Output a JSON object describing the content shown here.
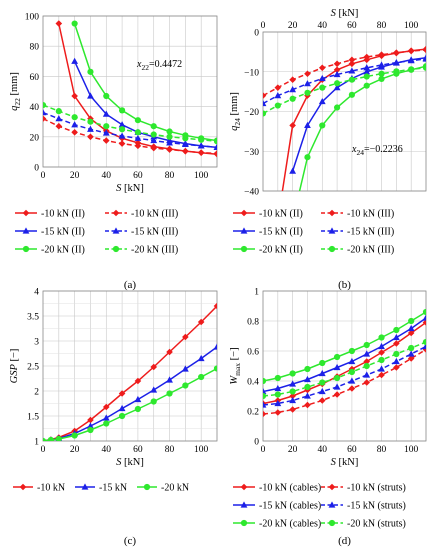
{
  "panels": {
    "a": {
      "label": "(a)",
      "annotation": "x22=0.4472"
    },
    "b": {
      "label": "(b)",
      "annotation": "x24=−0.2236"
    },
    "c": {
      "label": "(c)"
    },
    "d": {
      "label": "(d)"
    }
  },
  "colors": {
    "red": "#ee1c1c",
    "blue": "#1c20e8",
    "green": "#2ee82e"
  },
  "chart_data": [
    {
      "id": "a",
      "type": "line",
      "xlabel": "S [kN]",
      "ylabel": "q22 [mm]",
      "xlim": [
        0,
        110
      ],
      "ylim": [
        0,
        100
      ],
      "xticks": [
        0,
        20,
        40,
        60,
        80,
        100
      ],
      "yticks": [
        0,
        20,
        40,
        60,
        80,
        100
      ],
      "grid": true,
      "legend": "below",
      "series": [
        {
          "name": "-10 kN (II)",
          "color": "red",
          "dash": false,
          "marker": "diamond",
          "x": [
            10,
            20,
            30,
            40,
            50,
            60,
            70,
            80,
            90,
            100,
            110
          ],
          "y": [
            95,
            47,
            32,
            24,
            19,
            16,
            13.5,
            12,
            10.5,
            9.5,
            8.5
          ]
        },
        {
          "name": "-10 kN (III)",
          "color": "red",
          "dash": true,
          "marker": "diamond",
          "x": [
            0,
            10,
            20,
            30,
            40,
            50,
            60,
            70,
            80,
            90,
            100,
            110
          ],
          "y": [
            32,
            27,
            23,
            20,
            17.5,
            15.5,
            14,
            12.5,
            11.5,
            10.5,
            9.5,
            9
          ]
        },
        {
          "name": "-15 kN (II)",
          "color": "blue",
          "dash": false,
          "marker": "triangle",
          "x": [
            20,
            30,
            40,
            50,
            60,
            70,
            80,
            90,
            100,
            110
          ],
          "y": [
            70,
            47,
            35,
            28,
            23,
            20,
            17.5,
            15.5,
            14,
            13
          ]
        },
        {
          "name": "-15 kN (III)",
          "color": "blue",
          "dash": true,
          "marker": "triangle",
          "x": [
            0,
            10,
            20,
            30,
            40,
            50,
            60,
            70,
            80,
            90,
            100,
            110
          ],
          "y": [
            36,
            32,
            28,
            25,
            22.5,
            20.5,
            19,
            17.5,
            16,
            15,
            14,
            13
          ]
        },
        {
          "name": "-20 kN (II)",
          "color": "green",
          "dash": false,
          "marker": "circle",
          "x": [
            20,
            30,
            40,
            50,
            60,
            70,
            80,
            90,
            100,
            110
          ],
          "y": [
            95,
            63,
            47,
            37.5,
            31,
            27,
            23.5,
            21,
            19,
            17.5
          ]
        },
        {
          "name": "-20 kN (III)",
          "color": "green",
          "dash": true,
          "marker": "circle",
          "x": [
            0,
            10,
            20,
            30,
            40,
            50,
            60,
            70,
            80,
            90,
            100,
            110
          ],
          "y": [
            41,
            37,
            33,
            30,
            27,
            25,
            23,
            21.5,
            20,
            19,
            18,
            17
          ]
        }
      ]
    },
    {
      "id": "b",
      "type": "line",
      "xlabel": "S [kN]",
      "ylabel": "q24 [mm]",
      "xlim": [
        0,
        110
      ],
      "ylim": [
        -40,
        0
      ],
      "xticks": [
        0,
        20,
        40,
        60,
        80,
        100
      ],
      "yticks": [
        0,
        -10,
        -20,
        -30,
        -40
      ],
      "grid": true,
      "legend": "below",
      "series": [
        {
          "name": "-10 kN (II)",
          "color": "red",
          "dash": false,
          "marker": "diamond",
          "x": [
            10,
            20,
            30,
            40,
            50,
            60,
            70,
            80,
            90,
            100,
            110
          ],
          "y": [
            -47.5,
            -23.5,
            -16,
            -12,
            -9.5,
            -8,
            -7,
            -6,
            -5.3,
            -4.7,
            -4.3
          ]
        },
        {
          "name": "-10 kN (III)",
          "color": "red",
          "dash": true,
          "marker": "diamond",
          "x": [
            0,
            10,
            20,
            30,
            40,
            50,
            60,
            70,
            80,
            90,
            100,
            110
          ],
          "y": [
            -16,
            -14,
            -12,
            -10.5,
            -9,
            -8,
            -7,
            -6.3,
            -5.7,
            -5.2,
            -4.8,
            -4.5
          ]
        },
        {
          "name": "-15 kN (II)",
          "color": "blue",
          "dash": false,
          "marker": "triangle",
          "x": [
            20,
            30,
            40,
            50,
            60,
            70,
            80,
            90,
            100,
            110
          ],
          "y": [
            -35,
            -23.5,
            -17.5,
            -14,
            -11.7,
            -10,
            -8.8,
            -7.8,
            -7,
            -6.5
          ]
        },
        {
          "name": "-15 kN (III)",
          "color": "blue",
          "dash": true,
          "marker": "triangle",
          "x": [
            0,
            10,
            20,
            30,
            40,
            50,
            60,
            70,
            80,
            90,
            100,
            110
          ],
          "y": [
            -18,
            -16,
            -14.5,
            -13,
            -11.7,
            -10.7,
            -9.8,
            -9,
            -8.3,
            -7.7,
            -7.2,
            -6.8
          ]
        },
        {
          "name": "-20 kN (II)",
          "color": "green",
          "dash": false,
          "marker": "circle",
          "x": [
            20,
            30,
            40,
            50,
            60,
            70,
            80,
            90,
            100,
            110
          ],
          "y": [
            -47.5,
            -31.5,
            -23.5,
            -19,
            -15.8,
            -13.5,
            -11.8,
            -10.5,
            -9.5,
            -8.6
          ]
        },
        {
          "name": "-20 kN (III)",
          "color": "green",
          "dash": true,
          "marker": "circle",
          "x": [
            0,
            10,
            20,
            30,
            40,
            50,
            60,
            70,
            80,
            90,
            100,
            110
          ],
          "y": [
            -20.5,
            -18.5,
            -16.8,
            -15.3,
            -14,
            -12.9,
            -12,
            -11.2,
            -10.5,
            -9.9,
            -9.4,
            -9
          ]
        }
      ]
    },
    {
      "id": "c",
      "type": "line",
      "xlabel": "S [kN]",
      "ylabel": "GSP [−]",
      "xlim": [
        0,
        110
      ],
      "ylim": [
        1,
        4
      ],
      "xticks": [
        0,
        20,
        40,
        60,
        80,
        100
      ],
      "yticks": [
        1,
        1.5,
        2,
        2.5,
        3,
        3.5,
        4
      ],
      "grid": true,
      "legend": "below",
      "series": [
        {
          "name": "-10 kN",
          "color": "red",
          "dash": false,
          "marker": "diamond",
          "x": [
            0,
            5,
            10,
            20,
            30,
            40,
            50,
            60,
            70,
            80,
            90,
            100,
            110
          ],
          "y": [
            1,
            1.03,
            1.07,
            1.2,
            1.42,
            1.68,
            1.95,
            2.2,
            2.48,
            2.78,
            3.08,
            3.38,
            3.7
          ]
        },
        {
          "name": "-15 kN",
          "color": "blue",
          "dash": false,
          "marker": "triangle",
          "x": [
            0,
            5,
            10,
            20,
            30,
            40,
            50,
            60,
            70,
            80,
            90,
            100,
            110
          ],
          "y": [
            1,
            1.02,
            1.05,
            1.15,
            1.3,
            1.46,
            1.65,
            1.83,
            2.02,
            2.22,
            2.44,
            2.65,
            2.88
          ]
        },
        {
          "name": "-20 kN",
          "color": "green",
          "dash": false,
          "marker": "circle",
          "x": [
            0,
            5,
            10,
            20,
            30,
            40,
            50,
            60,
            70,
            80,
            90,
            100,
            110
          ],
          "y": [
            1,
            1.02,
            1.04,
            1.11,
            1.22,
            1.35,
            1.5,
            1.64,
            1.79,
            1.95,
            2.11,
            2.28,
            2.45
          ]
        }
      ]
    },
    {
      "id": "d",
      "type": "line",
      "xlabel": "S [kN]",
      "ylabel": "Wmax [−]",
      "xlim": [
        0,
        110
      ],
      "ylim": [
        0,
        1
      ],
      "xticks": [
        0,
        20,
        40,
        60,
        80,
        100
      ],
      "yticks": [
        0,
        0.2,
        0.4,
        0.6,
        0.8,
        1
      ],
      "grid": true,
      "legend": "below",
      "series": [
        {
          "name": "-10 kN (cables)",
          "color": "red",
          "dash": false,
          "marker": "diamond",
          "x": [
            0,
            10,
            20,
            30,
            40,
            50,
            60,
            70,
            80,
            90,
            100,
            110
          ],
          "y": [
            0.25,
            0.27,
            0.3,
            0.34,
            0.38,
            0.43,
            0.48,
            0.53,
            0.59,
            0.65,
            0.72,
            0.79
          ]
        },
        {
          "name": "-10 kN (struts)",
          "color": "red",
          "dash": true,
          "marker": "diamond",
          "x": [
            0,
            10,
            20,
            30,
            40,
            50,
            60,
            70,
            80,
            90,
            100,
            110
          ],
          "y": [
            0.18,
            0.19,
            0.21,
            0.24,
            0.27,
            0.31,
            0.35,
            0.39,
            0.44,
            0.49,
            0.55,
            0.61
          ]
        },
        {
          "name": "-15 kN (cables)",
          "color": "blue",
          "dash": false,
          "marker": "triangle",
          "x": [
            0,
            10,
            20,
            30,
            40,
            50,
            60,
            70,
            80,
            90,
            100,
            110
          ],
          "y": [
            0.33,
            0.35,
            0.38,
            0.41,
            0.45,
            0.49,
            0.53,
            0.58,
            0.63,
            0.69,
            0.75,
            0.82
          ]
        },
        {
          "name": "-15 kN (struts)",
          "color": "blue",
          "dash": true,
          "marker": "triangle",
          "x": [
            0,
            10,
            20,
            30,
            40,
            50,
            60,
            70,
            80,
            90,
            100,
            110
          ],
          "y": [
            0.24,
            0.25,
            0.27,
            0.3,
            0.33,
            0.36,
            0.4,
            0.44,
            0.48,
            0.53,
            0.58,
            0.63
          ]
        },
        {
          "name": "-20 kN (cables)",
          "color": "green",
          "dash": false,
          "marker": "circle",
          "x": [
            0,
            10,
            20,
            30,
            40,
            50,
            60,
            70,
            80,
            90,
            100,
            110
          ],
          "y": [
            0.4,
            0.42,
            0.45,
            0.48,
            0.52,
            0.56,
            0.6,
            0.64,
            0.69,
            0.74,
            0.8,
            0.86
          ]
        },
        {
          "name": "-20 kN (struts)",
          "color": "green",
          "dash": true,
          "marker": "circle",
          "x": [
            0,
            10,
            20,
            30,
            40,
            50,
            60,
            70,
            80,
            90,
            100,
            110
          ],
          "y": [
            0.3,
            0.31,
            0.33,
            0.36,
            0.39,
            0.42,
            0.46,
            0.5,
            0.54,
            0.58,
            0.62,
            0.66
          ]
        }
      ]
    }
  ]
}
